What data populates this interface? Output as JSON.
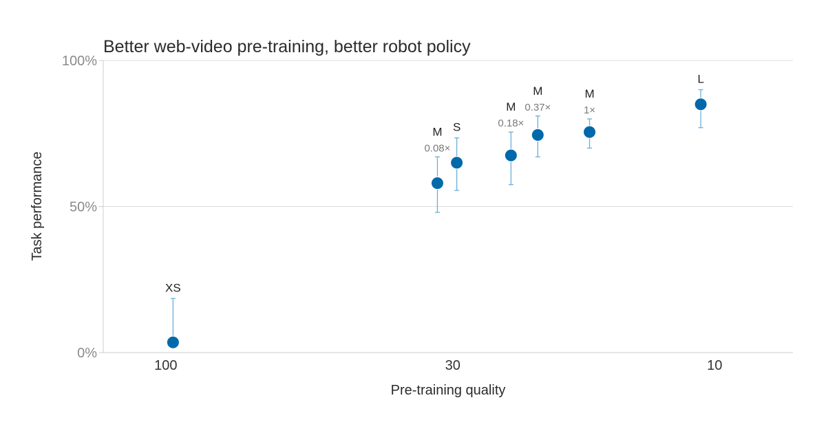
{
  "chart_data": {
    "type": "scatter",
    "title": "Better web-video pre-training, better robot policy",
    "xlabel": "Pre-training quality",
    "ylabel": "Task performance",
    "x_scale": "log",
    "x_reversed": true,
    "xlim": [
      130,
      7.2
    ],
    "ylim": [
      0,
      100
    ],
    "x_ticks": [
      {
        "value": 100,
        "label": "100"
      },
      {
        "value": 30,
        "label": "30"
      },
      {
        "value": 10,
        "label": "10"
      }
    ],
    "y_ticks": [
      {
        "value": 0,
        "label": "0%"
      },
      {
        "value": 50,
        "label": "50%"
      },
      {
        "value": 100,
        "label": "100%"
      }
    ],
    "grid": "horizontal",
    "legend": "none",
    "colors": {
      "point": "#0069aa",
      "errorbar": "#6aaed6",
      "grid": "#dddddd",
      "axis": "#cccccc"
    },
    "points": [
      {
        "x": 97,
        "y": 3.5,
        "err_low": 3.0,
        "err_high": 18.5,
        "label": "XS",
        "sublabel": ""
      },
      {
        "x": 32,
        "y": 58,
        "err_low": 48,
        "err_high": 67,
        "label": "M",
        "sublabel": "0.08×"
      },
      {
        "x": 29.5,
        "y": 65,
        "err_low": 55.5,
        "err_high": 73.5,
        "label": "S",
        "sublabel": ""
      },
      {
        "x": 23.5,
        "y": 67.5,
        "err_low": 57.5,
        "err_high": 75.5,
        "label": "M",
        "sublabel": "0.18×"
      },
      {
        "x": 21,
        "y": 74.5,
        "err_low": 67,
        "err_high": 81,
        "label": "M",
        "sublabel": "0.37×"
      },
      {
        "x": 16.9,
        "y": 75.5,
        "err_low": 70,
        "err_high": 80,
        "label": "M",
        "sublabel": "1×"
      },
      {
        "x": 10.6,
        "y": 85,
        "err_low": 77,
        "err_high": 90,
        "label": "L",
        "sublabel": ""
      }
    ]
  }
}
